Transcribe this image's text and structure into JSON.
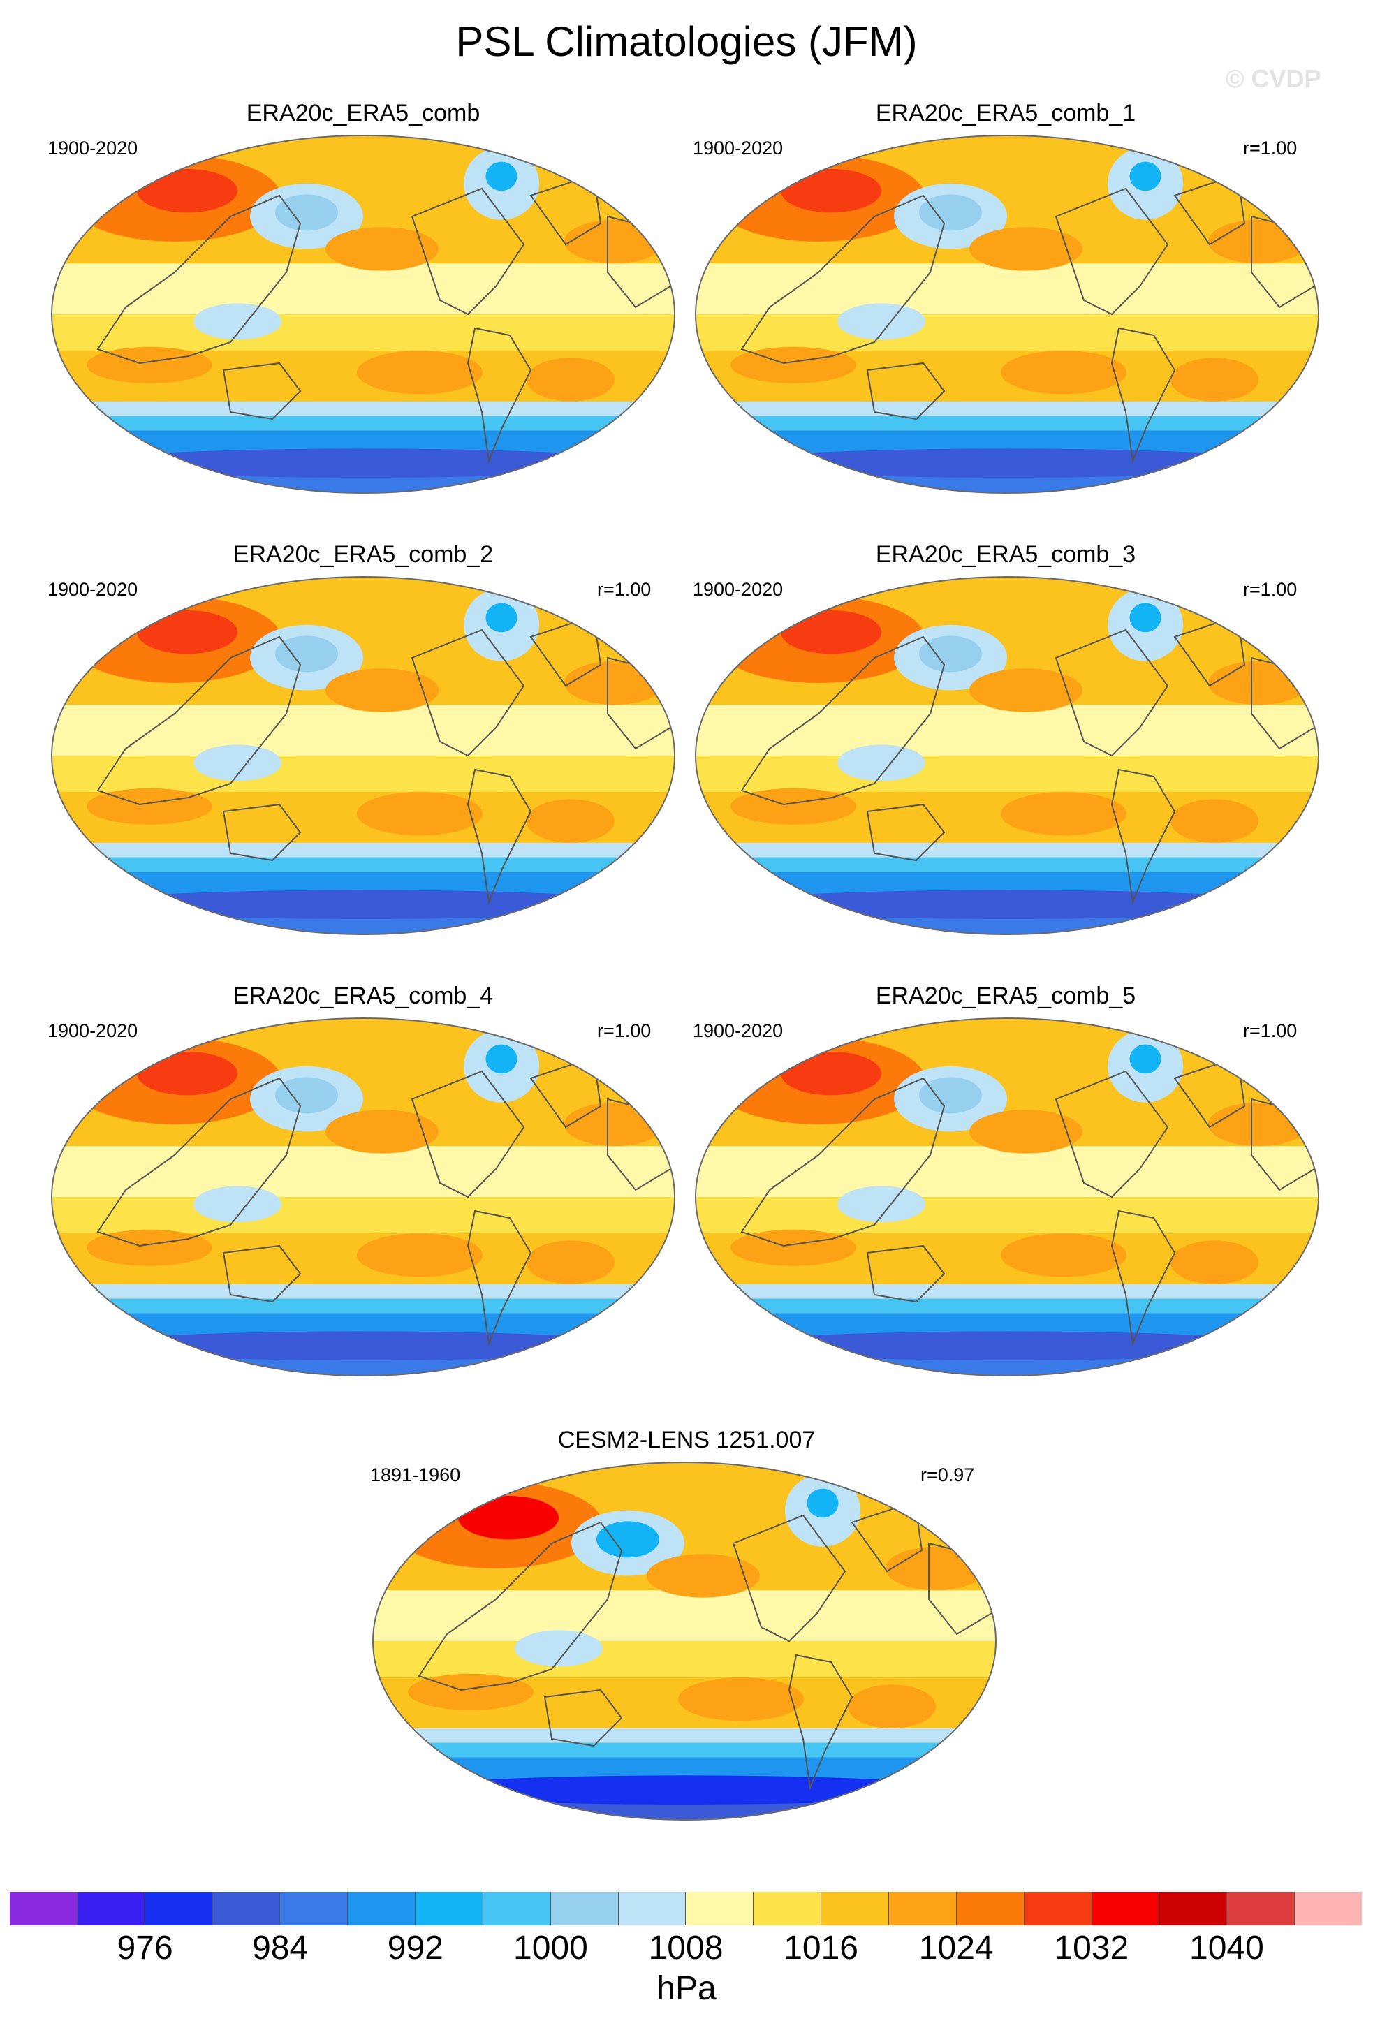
{
  "figure": {
    "title": "PSL Climatologies (JFM)",
    "watermark": "© CVDP"
  },
  "panels": [
    {
      "name": "ERA20c_ERA5_comb",
      "period": "1900-2020",
      "corr": ""
    },
    {
      "name": "ERA20c_ERA5_comb_1",
      "period": "1900-2020",
      "corr": "r=1.00"
    },
    {
      "name": "ERA20c_ERA5_comb_2",
      "period": "1900-2020",
      "corr": "r=1.00"
    },
    {
      "name": "ERA20c_ERA5_comb_3",
      "period": "1900-2020",
      "corr": "r=1.00"
    },
    {
      "name": "ERA20c_ERA5_comb_4",
      "period": "1900-2020",
      "corr": "r=1.00"
    },
    {
      "name": "ERA20c_ERA5_comb_5",
      "period": "1900-2020",
      "corr": "r=1.00"
    },
    {
      "name": "CESM2-LENS 1251.007",
      "period": "1891-1960",
      "corr": "r=0.97"
    }
  ],
  "colorbar": {
    "unit": "hPa",
    "tick_labels": [
      "976",
      "984",
      "992",
      "1000",
      "1008",
      "1016",
      "1024",
      "1032",
      "1040"
    ],
    "colors": [
      "#8a2be2",
      "#3a1ef2",
      "#1530f0",
      "#3a5ad8",
      "#3a7ae8",
      "#1e96f0",
      "#12b4f6",
      "#46c4f4",
      "#96d0ee",
      "#bee3f6",
      "#fff8a8",
      "#fde24a",
      "#fcc21e",
      "#fca214",
      "#fc7a0a",
      "#f83c12",
      "#f80000",
      "#cc0000",
      "#dc3c3c",
      "#ffb4b4"
    ]
  },
  "map_colors": {
    "outline": "#6a6a6a",
    "coast": "#555555",
    "base": "#fff6a4"
  }
}
